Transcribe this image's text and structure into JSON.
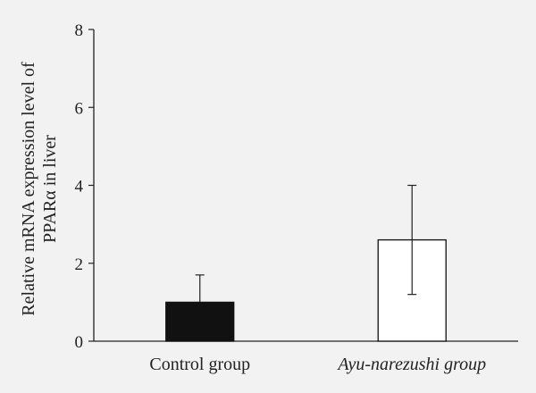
{
  "chart_data": {
    "type": "bar",
    "categories": [
      "Control group",
      "Ayu-narezushi group"
    ],
    "category_italic": [
      false,
      true
    ],
    "values": [
      1.0,
      2.6
    ],
    "errors": [
      0.7,
      1.4
    ],
    "bar_fills": [
      "#111111",
      "#ffffff"
    ],
    "ylabel_lines": [
      "Relative mRNA expression level of",
      "PPARα in liver"
    ],
    "ylim": [
      0,
      8
    ],
    "yticks": [
      0,
      2,
      4,
      6,
      8
    ],
    "grid": false,
    "legend": "none"
  }
}
